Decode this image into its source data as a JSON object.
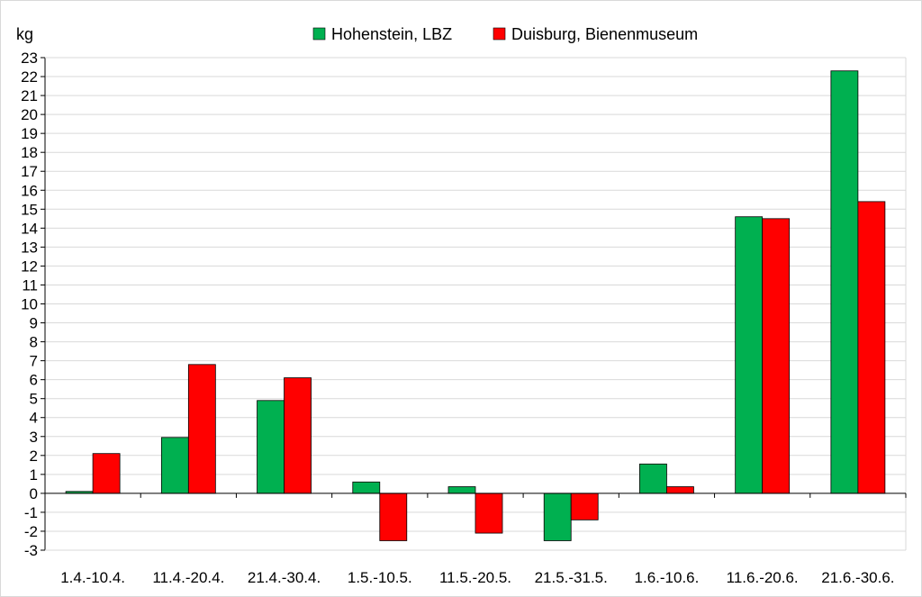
{
  "chart_data": {
    "type": "bar",
    "ylabel": "kg",
    "ylim": [
      -3,
      23
    ],
    "grid": true,
    "legend_position": "top",
    "categories": [
      "1.4.-10.4.",
      "11.4.-20.4.",
      "21.4.-30.4.",
      "1.5.-10.5.",
      "11.5.-20.5.",
      "21.5.-31.5.",
      "1.6.-10.6.",
      "11.6.-20.6.",
      "21.6.-30.6."
    ],
    "series": [
      {
        "name": "Hohenstein, LBZ",
        "color": "#00b050",
        "values": [
          0.1,
          2.95,
          4.9,
          0.6,
          0.35,
          -2.5,
          1.55,
          14.6,
          22.3
        ]
      },
      {
        "name": "Duisburg, Bienenmuseum",
        "color": "#ff0000",
        "values": [
          2.1,
          6.8,
          6.1,
          -2.5,
          -2.1,
          -1.4,
          0.35,
          14.5,
          15.4
        ]
      }
    ]
  }
}
